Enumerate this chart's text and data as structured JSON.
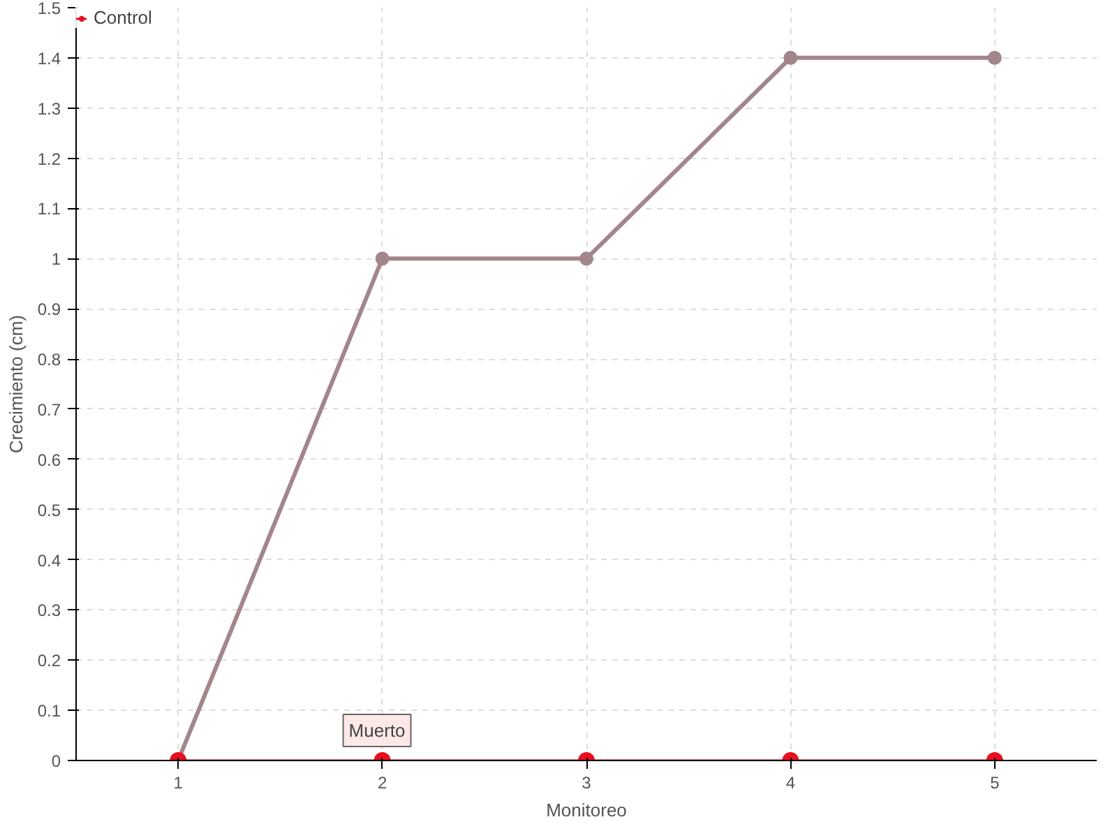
{
  "chart_data": {
    "type": "line",
    "xlabel": "Monitoreo",
    "ylabel": "Crecimiento (cm)",
    "x": [
      1,
      2,
      3,
      4,
      5
    ],
    "series": [
      {
        "color": "#a3868c",
        "values": [
          0,
          1,
          1,
          1.4,
          1.4
        ]
      },
      {
        "name": "Control",
        "color": "#e8101f",
        "values": [
          0,
          0,
          0,
          0,
          0
        ]
      }
    ],
    "xlim": [
      0.5,
      5.5
    ],
    "xticks": [
      1,
      2,
      3,
      4,
      5
    ],
    "ylim": [
      0,
      1.5
    ],
    "yticks": [
      0,
      0.1,
      0.2,
      0.3,
      0.4,
      0.5,
      0.6,
      0.7,
      0.8,
      0.9,
      1,
      1.1,
      1.2,
      1.3,
      1.4,
      1.5
    ],
    "grid": true,
    "legend": "top left",
    "marker": "circle",
    "line_style": "solid",
    "annotations": [
      {
        "text": "Muerto",
        "x": 2,
        "y": 0
      }
    ]
  }
}
